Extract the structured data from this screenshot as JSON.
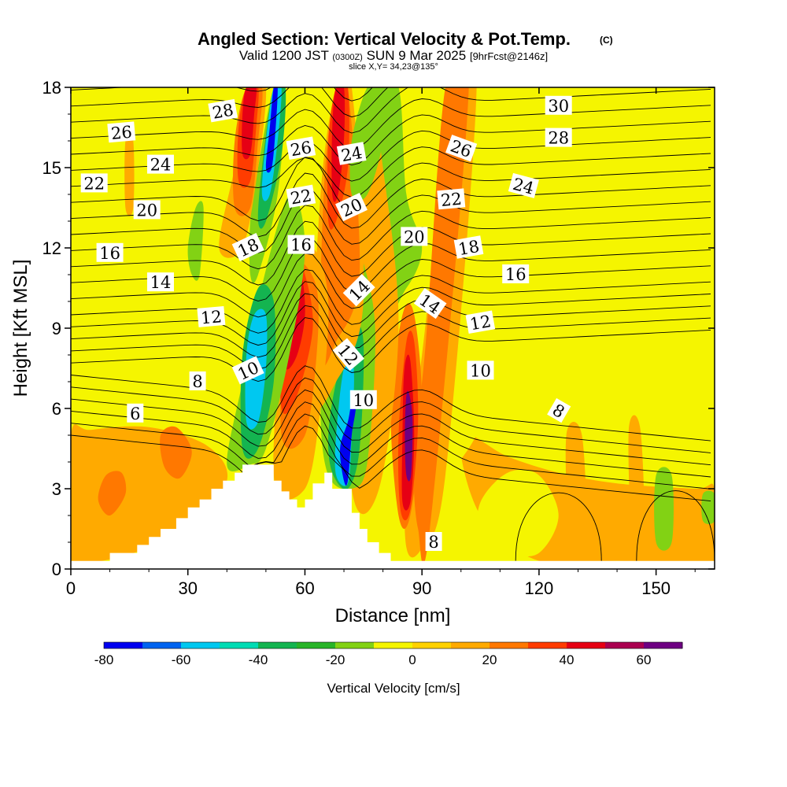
{
  "header": {
    "title_main": "Angled Section: Vertical Velocity & Pot.Temp.",
    "title_suffix": "(C)",
    "subtitle_valid": "Valid 1200 JST",
    "subtitle_zulu": "(0300Z)",
    "subtitle_date": "SUN 9 Mar 2025",
    "subtitle_fcst": "[9hrFcst@2146z]",
    "slice_info": "slice X,Y= 34,23@135°"
  },
  "chart_data": {
    "type": "heatmap",
    "xlabel": "Distance [nm]",
    "ylabel": "Height [Kft MSL]",
    "xlim": [
      0,
      165
    ],
    "ylim": [
      0,
      18
    ],
    "x_ticks": [
      "0",
      "30",
      "60",
      "90",
      "120",
      "150"
    ],
    "x_tick_values": [
      0,
      30,
      60,
      90,
      120,
      150
    ],
    "y_ticks": [
      "0",
      "3",
      "6",
      "9",
      "12",
      "15",
      "18"
    ],
    "y_tick_values": [
      0,
      3,
      6,
      9,
      12,
      15,
      18
    ],
    "background_color": "#f5f500",
    "colorbar": {
      "label": "Vertical Velocity [cm/s]",
      "ticks": [
        "-80",
        "-60",
        "-40",
        "-20",
        "0",
        "20",
        "40",
        "60"
      ],
      "tick_values": [
        -80,
        -60,
        -40,
        -20,
        0,
        20,
        40,
        60
      ],
      "bin_edges": [
        -80,
        -70,
        -60,
        -50,
        -40,
        -30,
        -20,
        -10,
        0,
        10,
        20,
        30,
        40,
        50,
        60,
        70
      ],
      "colors": [
        "#0000f0",
        "#0064f0",
        "#00c8f0",
        "#00dcb4",
        "#14b450",
        "#28b428",
        "#82d214",
        "#f5f500",
        "#ffd200",
        "#ffaa00",
        "#ff7800",
        "#ff3c00",
        "#e60014",
        "#aa0050",
        "#6e0082"
      ]
    },
    "terrain": {
      "color": "#ffffff",
      "x": [
        0,
        10,
        10,
        17,
        17,
        20,
        20,
        23,
        23,
        27,
        27,
        30,
        30,
        33,
        33,
        36,
        36,
        39,
        39,
        42,
        42,
        44,
        44,
        47,
        47,
        52,
        52,
        54,
        54,
        56,
        56,
        58,
        58,
        60,
        60,
        62,
        62,
        65,
        65,
        67,
        67,
        72,
        72,
        74,
        74,
        76,
        76,
        79,
        79,
        82,
        82,
        85,
        85,
        87,
        87,
        165
      ],
      "y": [
        0.3,
        0.3,
        0.6,
        0.6,
        0.9,
        0.9,
        1.2,
        1.2,
        1.5,
        1.5,
        1.9,
        1.9,
        2.3,
        2.3,
        2.6,
        2.6,
        3.0,
        3.0,
        3.3,
        3.3,
        3.6,
        3.6,
        3.9,
        3.9,
        3.9,
        3.9,
        3.3,
        3.3,
        2.9,
        2.9,
        2.6,
        2.6,
        2.3,
        2.3,
        2.6,
        2.6,
        3.2,
        3.2,
        3.6,
        3.6,
        3.0,
        3.0,
        2.1,
        2.1,
        1.5,
        1.5,
        1.0,
        1.0,
        0.6,
        0.6,
        0.3,
        0.3,
        0.3,
        0.3,
        0.3,
        0.3
      ]
    },
    "velocity_features": [
      {
        "x": [
          0,
          8,
          20,
          30,
          40,
          35,
          20,
          5,
          0
        ],
        "y": [
          0.3,
          0.3,
          0.8,
          1.6,
          3.3,
          4.6,
          5.3,
          5.2,
          5.0
        ],
        "value": 10
      },
      {
        "x": [
          100,
          112,
          125,
          140,
          160,
          165,
          165,
          140,
          120,
          105
        ],
        "y": [
          5.0,
          4.2,
          3.6,
          3.2,
          3.0,
          3.0,
          0.3,
          0.3,
          0.3,
          2.0
        ],
        "value": 10
      },
      {
        "x": [
          105,
          112,
          120,
          125,
          120,
          112,
          105
        ],
        "y": [
          2.5,
          3.6,
          3.5,
          2.0,
          0.6,
          0.6,
          1.2
        ],
        "value": -10
      },
      {
        "x": [
          10,
          14,
          13,
          9,
          7
        ],
        "y": [
          2.0,
          2.8,
          3.6,
          3.5,
          2.6
        ],
        "value": 20
      },
      {
        "x": [
          24,
          28,
          31,
          27,
          23
        ],
        "y": [
          3.8,
          3.4,
          4.4,
          5.3,
          5.0
        ],
        "value": 20
      },
      {
        "x": [
          82,
          88,
          95,
          105,
          100,
          90,
          84,
          80
        ],
        "y": [
          0.6,
          0.6,
          3.0,
          5.5,
          8.0,
          9.0,
          8.0,
          4.0
        ],
        "value": -10
      },
      {
        "x": [
          86,
          90,
          96,
          104,
          98,
          90,
          86
        ],
        "y": [
          0.8,
          0.8,
          3.5,
          18,
          18,
          8.0,
          4.0
        ],
        "value": 10
      },
      {
        "x": [
          89,
          92,
          102,
          96,
          91,
          88
        ],
        "y": [
          1.5,
          1.5,
          18,
          18,
          8.5,
          4.0
        ],
        "value": 20
      },
      {
        "x": [
          80,
          86,
          90,
          86,
          84,
          78
        ],
        "y": [
          10.0,
          10.5,
          12.0,
          14.0,
          18,
          18
        ],
        "value": -20
      },
      {
        "x": [
          84,
          87,
          90,
          88,
          85,
          82
        ],
        "y": [
          2.0,
          2.0,
          6.0,
          9.5,
          9.5,
          6.0
        ],
        "value": 20
      },
      {
        "x": [
          84.5,
          87,
          89,
          88,
          86,
          84
        ],
        "y": [
          2.2,
          2.2,
          5.5,
          8.5,
          8.5,
          5.0
        ],
        "value": 30
      },
      {
        "x": [
          85,
          87,
          88,
          87,
          85.5,
          85
        ],
        "y": [
          2.5,
          2.5,
          5.0,
          7.8,
          7.5,
          5.0
        ],
        "value": 40
      },
      {
        "x": [
          86,
          87.2,
          87.6,
          86.8,
          86,
          85.6
        ],
        "y": [
          3.5,
          3.5,
          5.5,
          6.5,
          6.5,
          5.0
        ],
        "value": 60
      },
      {
        "x": [
          72,
          79,
          84,
          80,
          76,
          70
        ],
        "y": [
          3.0,
          3.0,
          9.0,
          15.0,
          18,
          12.0
        ],
        "value": 10
      },
      {
        "x": [
          66,
          72,
          76,
          78,
          74,
          70,
          66,
          64
        ],
        "y": [
          3.5,
          3.0,
          4.0,
          9.0,
          12.0,
          14.0,
          10.0,
          6.0
        ],
        "value": -20
      },
      {
        "x": [
          67,
          71,
          74,
          75,
          72,
          68,
          66
        ],
        "y": [
          3.6,
          3.0,
          4.5,
          8.5,
          9.0,
          7.0,
          5.0
        ],
        "value": -40
      },
      {
        "x": [
          68,
          71,
          72,
          72.5,
          70,
          68
        ],
        "y": [
          3.5,
          3.2,
          5.0,
          7.5,
          7.5,
          5.0
        ],
        "value": -60
      },
      {
        "x": [
          70,
          71,
          72,
          73,
          72,
          71,
          69
        ],
        "y": [
          3.3,
          3.3,
          5.0,
          6.0,
          6.2,
          5.5,
          4.5
        ],
        "value": -75
      },
      {
        "x": [
          62,
          68,
          75,
          72,
          68,
          64
        ],
        "y": [
          6.5,
          7.0,
          10.0,
          18,
          18,
          14.0
        ],
        "value": 10
      },
      {
        "x": [
          64,
          68,
          74,
          71,
          68,
          65
        ],
        "y": [
          8.0,
          8.5,
          11.0,
          18,
          18,
          14.5
        ],
        "value": 20
      },
      {
        "x": [
          66,
          68,
          71,
          71,
          68,
          66
        ],
        "y": [
          13.0,
          13.0,
          15.0,
          18,
          18,
          16.0
        ],
        "value": 30
      },
      {
        "x": [
          67,
          68.5,
          70,
          70,
          68,
          67
        ],
        "y": [
          14.0,
          14.0,
          16.0,
          18,
          18,
          16.5
        ],
        "value": 40
      },
      {
        "x": [
          52,
          60,
          64,
          66,
          62,
          56
        ],
        "y": [
          3.5,
          3.0,
          6.0,
          10.0,
          12.0,
          11.0
        ],
        "value": 10
      },
      {
        "x": [
          54,
          60,
          63,
          63,
          58,
          55
        ],
        "y": [
          5.0,
          5.0,
          8.0,
          10.5,
          11.5,
          10.0
        ],
        "value": 20
      },
      {
        "x": [
          54,
          58,
          62,
          60,
          57,
          54
        ],
        "y": [
          6.0,
          6.5,
          9.0,
          11.0,
          11.5,
          9.5
        ],
        "value": 30
      },
      {
        "x": [
          55,
          58,
          60,
          59,
          56,
          54
        ],
        "y": [
          7.5,
          8.0,
          9.5,
          11.0,
          11.0,
          9.0
        ],
        "value": 40
      },
      {
        "x": [
          40,
          46,
          50,
          56,
          60,
          56,
          48,
          44
        ],
        "y": [
          3.9,
          3.9,
          4.5,
          8.0,
          12.0,
          14.0,
          10.0,
          7.0
        ],
        "value": -20
      },
      {
        "x": [
          44,
          48,
          52,
          52,
          48,
          44
        ],
        "y": [
          4.5,
          4.5,
          7.0,
          10.0,
          10.5,
          8.0
        ],
        "value": -40
      },
      {
        "x": [
          45,
          48,
          50,
          50,
          47,
          45
        ],
        "y": [
          5.5,
          5.5,
          7.5,
          9.5,
          9.5,
          8.0
        ],
        "value": -60
      },
      {
        "x": [
          46,
          48,
          53,
          55,
          52,
          48,
          46
        ],
        "y": [
          11.0,
          11.0,
          14.0,
          18,
          18,
          15.0,
          13.0
        ],
        "value": -20
      },
      {
        "x": [
          48,
          50,
          54,
          55,
          52,
          49
        ],
        "y": [
          13.0,
          13.0,
          15.5,
          18,
          18,
          15.0
        ],
        "value": -40
      },
      {
        "x": [
          49,
          51,
          53,
          54,
          52,
          50
        ],
        "y": [
          14.0,
          14.0,
          16.0,
          18,
          18,
          16.0
        ],
        "value": -60
      },
      {
        "x": [
          50,
          51.5,
          52.5,
          53,
          52,
          51
        ],
        "y": [
          15.0,
          15.0,
          16.5,
          18,
          18,
          16.5
        ],
        "value": -75
      },
      {
        "x": [
          38,
          44,
          48,
          50,
          46,
          42
        ],
        "y": [
          12.0,
          12.0,
          15.0,
          18,
          18,
          15.0
        ],
        "value": 10
      },
      {
        "x": [
          42,
          46,
          48,
          49,
          45,
          42
        ],
        "y": [
          13.5,
          13.5,
          16.0,
          18,
          18,
          16.0
        ],
        "value": 20
      },
      {
        "x": [
          43,
          46,
          47.5,
          48,
          45,
          43
        ],
        "y": [
          14.5,
          14.5,
          16.5,
          18,
          18,
          16.5
        ],
        "value": 30
      },
      {
        "x": [
          44,
          46,
          47,
          47.5,
          45,
          44
        ],
        "y": [
          15.5,
          15.5,
          17.0,
          18,
          18,
          17.0
        ],
        "value": 40
      },
      {
        "x": [
          31,
          33,
          34,
          32,
          30
        ],
        "y": [
          11.0,
          11.0,
          13.5,
          13.5,
          12.0
        ],
        "value": -20
      },
      {
        "x": [
          14,
          16,
          16,
          14
        ],
        "y": [
          13.5,
          13.5,
          16.0,
          16.0
        ],
        "value": 10
      },
      {
        "x": [
          72,
          76,
          80,
          80,
          76,
          72
        ],
        "y": [
          14.0,
          14.0,
          16.0,
          18,
          18,
          16.0
        ],
        "value": -20
      },
      {
        "x": [
          150,
          154,
          154,
          150
        ],
        "y": [
          1.0,
          1.0,
          3.5,
          3.5
        ],
        "value": -20
      },
      {
        "x": [
          162,
          165,
          165,
          162
        ],
        "y": [
          1.8,
          1.8,
          2.8,
          2.8
        ],
        "value": -20
      },
      {
        "x": [
          128,
          132,
          131,
          127
        ],
        "y": [
          1.0,
          1.0,
          5.0,
          5.0
        ],
        "value": 10
      },
      {
        "x": [
          144,
          147,
          146,
          143
        ],
        "y": [
          0.8,
          0.8,
          5.2,
          5.2
        ],
        "value": 10
      }
    ],
    "theta_labels": [
      {
        "text": "28",
        "x": 39,
        "y": 17.1,
        "angle": -10
      },
      {
        "text": "26",
        "x": 13,
        "y": 16.3,
        "angle": -5
      },
      {
        "text": "24",
        "x": 23,
        "y": 15.1,
        "angle": 0
      },
      {
        "text": "22",
        "x": 6,
        "y": 14.4,
        "angle": 0
      },
      {
        "text": "20",
        "x": 19.5,
        "y": 13.4,
        "angle": 0
      },
      {
        "text": "16",
        "x": 10,
        "y": 11.8,
        "angle": 0
      },
      {
        "text": "14",
        "x": 23,
        "y": 10.7,
        "angle": 0
      },
      {
        "text": "12",
        "x": 36,
        "y": 9.4,
        "angle": -5
      },
      {
        "text": "10",
        "x": 45.5,
        "y": 7.4,
        "angle": -25
      },
      {
        "text": "8",
        "x": 32.5,
        "y": 7.0,
        "angle": 0
      },
      {
        "text": "6",
        "x": 16.5,
        "y": 5.8,
        "angle": 0
      },
      {
        "text": "18",
        "x": 45.5,
        "y": 12.0,
        "angle": -25
      },
      {
        "text": "16",
        "x": 59,
        "y": 12.1,
        "angle": 0
      },
      {
        "text": "26",
        "x": 59,
        "y": 15.7,
        "angle": -10
      },
      {
        "text": "22",
        "x": 59,
        "y": 13.9,
        "angle": -10
      },
      {
        "text": "24",
        "x": 72,
        "y": 15.5,
        "angle": -10
      },
      {
        "text": "20",
        "x": 72,
        "y": 13.5,
        "angle": -25
      },
      {
        "text": "14",
        "x": 74,
        "y": 10.4,
        "angle": -45
      },
      {
        "text": "12",
        "x": 71,
        "y": 8.0,
        "angle": 50
      },
      {
        "text": "10",
        "x": 75,
        "y": 6.3,
        "angle": 0
      },
      {
        "text": "20",
        "x": 88,
        "y": 12.4,
        "angle": 0
      },
      {
        "text": "14",
        "x": 92,
        "y": 9.9,
        "angle": 35
      },
      {
        "text": "26",
        "x": 100,
        "y": 15.7,
        "angle": 20
      },
      {
        "text": "22",
        "x": 97.5,
        "y": 13.8,
        "angle": -5
      },
      {
        "text": "18",
        "x": 102,
        "y": 12.0,
        "angle": -10
      },
      {
        "text": "12",
        "x": 105,
        "y": 9.2,
        "angle": -10
      },
      {
        "text": "10",
        "x": 105,
        "y": 7.4,
        "angle": 0
      },
      {
        "text": "8",
        "x": 125,
        "y": 5.9,
        "angle": 30
      },
      {
        "text": "16",
        "x": 114,
        "y": 11.0,
        "angle": 0
      },
      {
        "text": "24",
        "x": 116,
        "y": 14.3,
        "angle": 15
      },
      {
        "text": "28",
        "x": 125,
        "y": 16.1,
        "angle": 0
      },
      {
        "text": "30",
        "x": 125,
        "y": 17.3,
        "angle": 0
      },
      {
        "text": "8",
        "x": 93,
        "y": 1.0,
        "angle": 0
      }
    ]
  }
}
